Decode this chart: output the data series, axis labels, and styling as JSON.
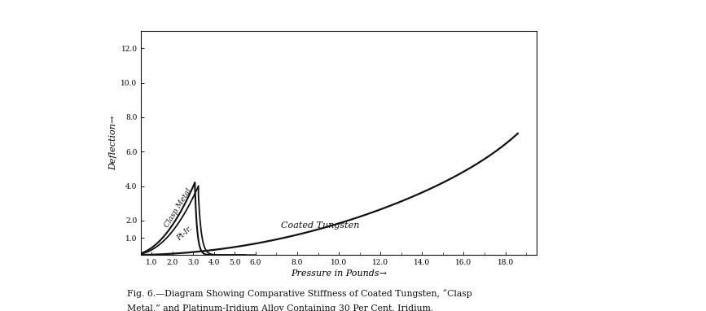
{
  "title_line1": "Fig. 6.—Diagram Showing Comparative Stiffness of Coated Tungsten, “Clasp",
  "title_line2": "Metal,” and Platinum-Iridium Alloy Containing 30 Per Cent. Iridium.",
  "xlabel": "Pressure in Pounds→",
  "ylabel": "Deflection→",
  "xlim": [
    0.5,
    19.5
  ],
  "ylim": [
    0,
    13.0
  ],
  "xticks": [
    1.0,
    2.0,
    3.0,
    4.0,
    5.0,
    6.0,
    8.0,
    10.0,
    12.0,
    14.0,
    16.0,
    18.0
  ],
  "yticks": [
    1.0,
    2.0,
    4.0,
    6.0,
    8.0,
    10.0,
    12.0
  ],
  "bg_color": "#ffffff",
  "line_color": "#111111",
  "label_clasp": "Clasp Metal",
  "label_ptir": "Pt-Ir.",
  "label_tungsten": "Coated Tungsten"
}
